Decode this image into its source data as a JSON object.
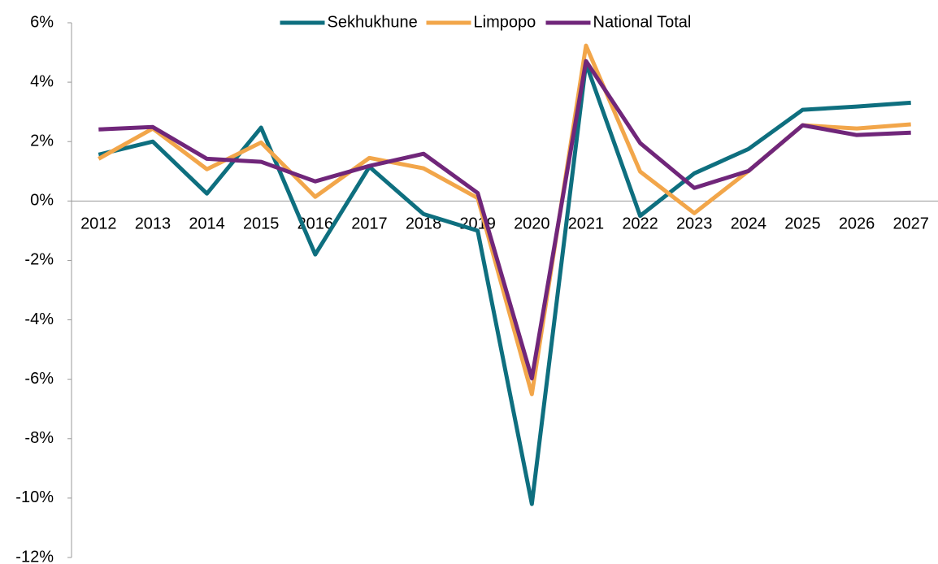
{
  "chart_data": {
    "type": "line",
    "categories": [
      "2012",
      "2013",
      "2014",
      "2015",
      "2016",
      "2017",
      "2018",
      "2019",
      "2020",
      "2021",
      "2022",
      "2023",
      "2024",
      "2025",
      "2026",
      "2027"
    ],
    "series": [
      {
        "name": "Sekhukhune",
        "color": "#0e6f7f",
        "values": [
          1.56,
          2.0,
          0.25,
          2.47,
          -1.8,
          1.15,
          -0.44,
          -1.0,
          -10.2,
          4.63,
          -0.5,
          0.93,
          1.75,
          3.07,
          3.18,
          3.31
        ]
      },
      {
        "name": "Limpopo",
        "color": "#f2a64a",
        "values": [
          1.42,
          2.44,
          1.07,
          1.97,
          0.14,
          1.45,
          1.1,
          0.1,
          -6.5,
          5.23,
          0.99,
          -0.41,
          1.01,
          2.55,
          2.44,
          2.58
        ]
      },
      {
        "name": "National Total",
        "color": "#70267a",
        "values": [
          2.41,
          2.49,
          1.42,
          1.32,
          0.66,
          1.18,
          1.59,
          0.27,
          -5.97,
          4.71,
          1.95,
          0.44,
          1.01,
          2.55,
          2.22,
          2.3
        ]
      }
    ],
    "ylim": [
      -12,
      6
    ],
    "yticks": [
      {
        "value": -12,
        "label": "-12%"
      },
      {
        "value": -10,
        "label": "-10%"
      },
      {
        "value": -8,
        "label": "-8%"
      },
      {
        "value": -6,
        "label": "-6%"
      },
      {
        "value": -4,
        "label": "-4%"
      },
      {
        "value": -2,
        "label": "-2%"
      },
      {
        "value": 0,
        "label": "0%"
      },
      {
        "value": 2,
        "label": "2%"
      },
      {
        "value": 4,
        "label": "4%"
      },
      {
        "value": 6,
        "label": "6%"
      }
    ],
    "legend": "top"
  }
}
